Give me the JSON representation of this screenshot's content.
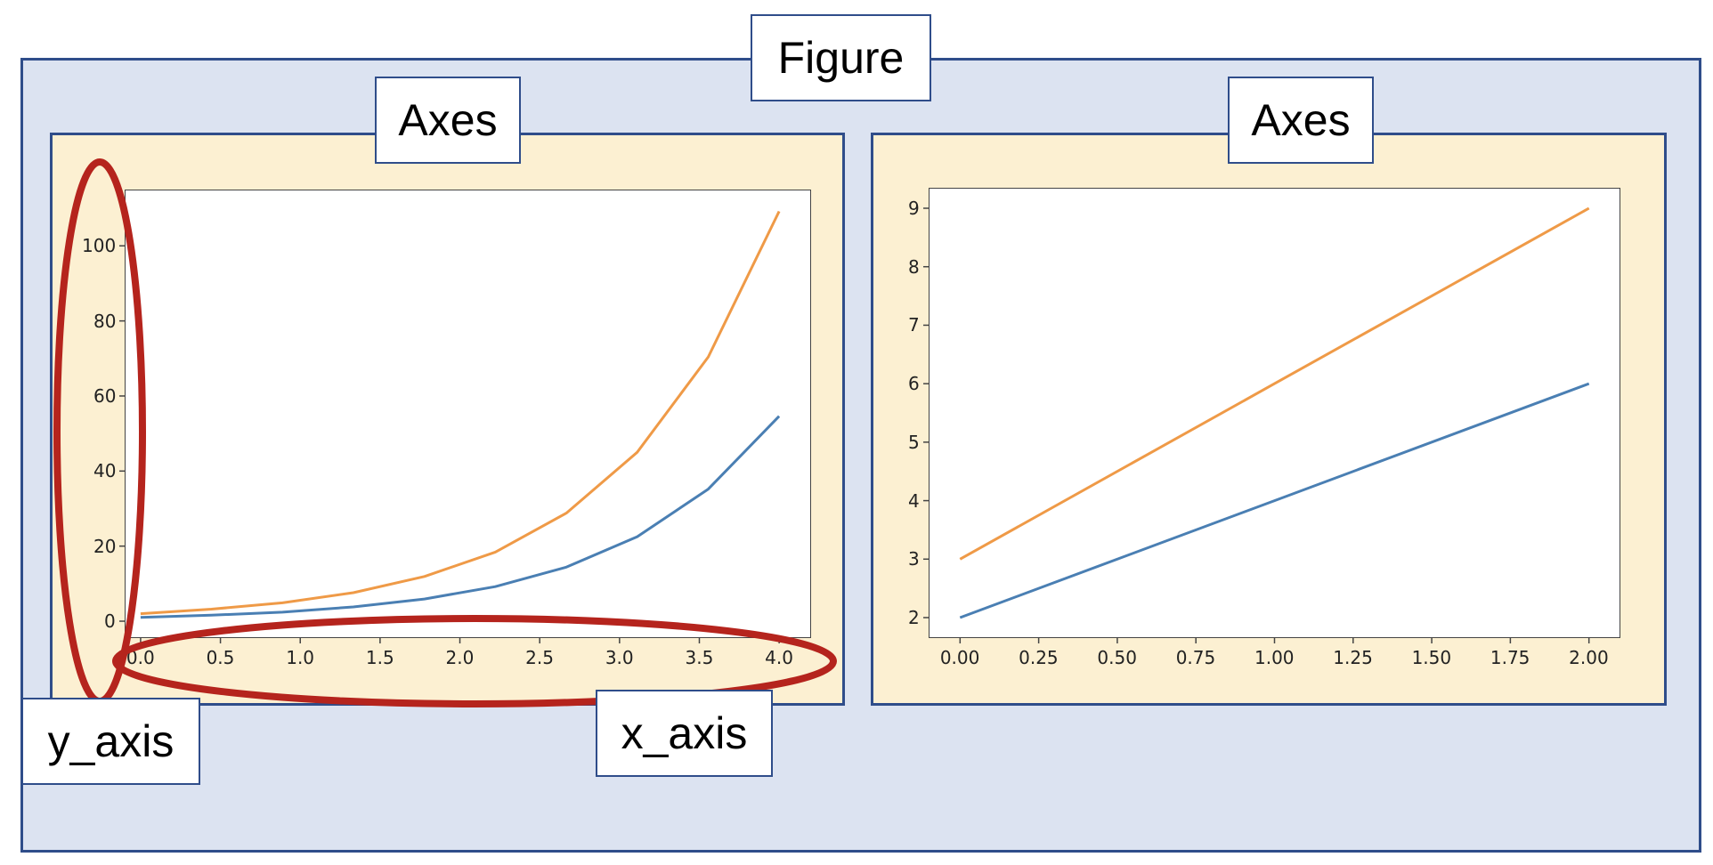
{
  "colors": {
    "figure_bg": "#dce3f1",
    "axes_bg": "#fcf0d2",
    "border": "#2f4d8a",
    "highlight": "#b5241d",
    "series_blue": "#4a7fb3",
    "series_orange": "#ef9a47"
  },
  "labels": {
    "figure": "Figure",
    "axes_left": "Axes",
    "axes_right": "Axes",
    "y_axis": "y_axis",
    "x_axis": "x_axis"
  },
  "chart_data": [
    {
      "type": "line",
      "xlim": [
        -0.1,
        4.2
      ],
      "ylim": [
        -4.5,
        115
      ],
      "x_ticks": [
        "0.0",
        "0.5",
        "1.0",
        "1.5",
        "2.0",
        "2.5",
        "3.0",
        "3.5",
        "4.0"
      ],
      "x_tick_values": [
        0,
        0.5,
        1.0,
        1.5,
        2.0,
        2.5,
        3.0,
        3.5,
        4.0
      ],
      "y_ticks": [
        "0",
        "20",
        "40",
        "60",
        "80",
        "100"
      ],
      "y_tick_values": [
        0,
        20,
        40,
        60,
        80,
        100
      ],
      "x": [
        0.0,
        0.444,
        0.889,
        1.333,
        1.778,
        2.222,
        2.667,
        3.111,
        3.556,
        4.0
      ],
      "series": [
        {
          "color": "#4a7fb3",
          "values": [
            1.0,
            1.6,
            2.4,
            3.8,
            5.9,
            9.2,
            14.4,
            22.5,
            35.2,
            54.6
          ]
        },
        {
          "color": "#ef9a47",
          "values": [
            2.0,
            3.2,
            4.9,
            7.6,
            11.9,
            18.4,
            28.8,
            45.0,
            70.4,
            109.2
          ]
        }
      ]
    },
    {
      "type": "line",
      "xlim": [
        -0.1,
        2.1
      ],
      "ylim": [
        1.65,
        9.35
      ],
      "x_ticks": [
        "0.00",
        "0.25",
        "0.50",
        "0.75",
        "1.00",
        "1.25",
        "1.50",
        "1.75",
        "2.00"
      ],
      "x_tick_values": [
        0,
        0.25,
        0.5,
        0.75,
        1.0,
        1.25,
        1.5,
        1.75,
        2.0
      ],
      "y_ticks": [
        "2",
        "3",
        "4",
        "5",
        "6",
        "7",
        "8",
        "9"
      ],
      "y_tick_values": [
        2,
        3,
        4,
        5,
        6,
        7,
        8,
        9
      ],
      "x": [
        0,
        1,
        2
      ],
      "series": [
        {
          "color": "#4a7fb3",
          "values": [
            2,
            4,
            6
          ]
        },
        {
          "color": "#ef9a47",
          "values": [
            3,
            6,
            9
          ]
        }
      ]
    }
  ]
}
